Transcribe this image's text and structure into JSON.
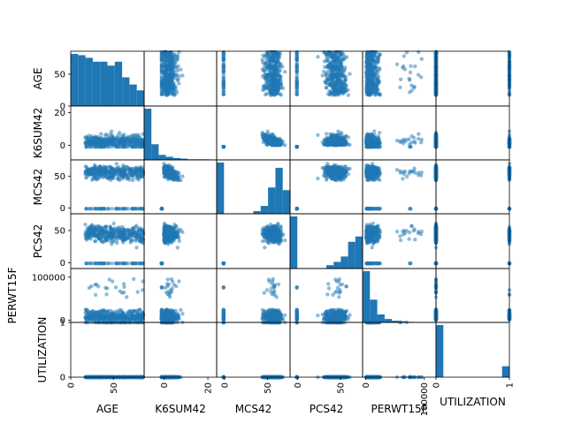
{
  "chart_data": {
    "type": "scatter",
    "kind": "scatter-matrix",
    "variables": [
      "AGE",
      "K6SUM42",
      "MCS42",
      "PCS42",
      "PERWT15F",
      "UTILIZATION"
    ],
    "diagonal": "histogram",
    "color": "#1f77b4",
    "point_alpha": 0.5,
    "ranges": {
      "AGE": [
        0,
        86
      ],
      "K6SUM42": [
        -9,
        24
      ],
      "MCS42": [
        -9,
        76
      ],
      "PCS42": [
        -9,
        76
      ],
      "PERWT15F": [
        -5000,
        120000
      ],
      "UTILIZATION": [
        0,
        1
      ]
    },
    "y_tick_labels": {
      "AGE": [
        "0",
        "50"
      ],
      "K6SUM42": [
        "0",
        "20"
      ],
      "MCS42": [
        "0",
        "50"
      ],
      "PCS42": [
        "0",
        "50"
      ],
      "PERWT15F": [
        "0",
        "100000"
      ],
      "UTILIZATION": [
        "0",
        "1"
      ]
    },
    "x_tick_labels": {
      "AGE": [
        "0",
        "50"
      ],
      "K6SUM42": [
        "0",
        "20"
      ],
      "MCS42": [
        "0",
        "50"
      ],
      "PCS42": [
        "0",
        "50"
      ],
      "PERWT15F": [
        "0",
        "100000"
      ],
      "UTILIZATION": [
        "0",
        "1"
      ]
    },
    "tick_values": {
      "AGE": [
        0,
        50
      ],
      "K6SUM42": [
        0,
        20
      ],
      "MCS42": [
        0,
        50
      ],
      "PCS42": [
        0,
        50
      ],
      "PERWT15F": [
        0,
        100000
      ],
      "UTILIZATION": [
        0,
        1
      ]
    },
    "histograms": {
      "AGE": [
        80,
        78,
        74,
        68,
        68,
        62,
        68,
        44,
        33,
        24
      ],
      "K6SUM42": [
        82,
        25,
        8,
        5,
        3,
        2,
        1,
        1,
        1,
        0.5
      ],
      "MCS42": [
        78,
        0.5,
        0.5,
        0.5,
        0.5,
        4,
        12,
        40,
        70,
        36
      ],
      "PCS42": [
        78,
        0.5,
        0.5,
        0.5,
        0.5,
        5,
        10,
        18,
        40,
        48
      ],
      "PERWT15F": [
        90,
        40,
        14,
        6,
        3,
        2,
        1,
        0.5,
        0.3,
        0.2
      ],
      "UTILIZATION": [
        95,
        0,
        0,
        0,
        0,
        0,
        0,
        0,
        0,
        20
      ]
    }
  }
}
